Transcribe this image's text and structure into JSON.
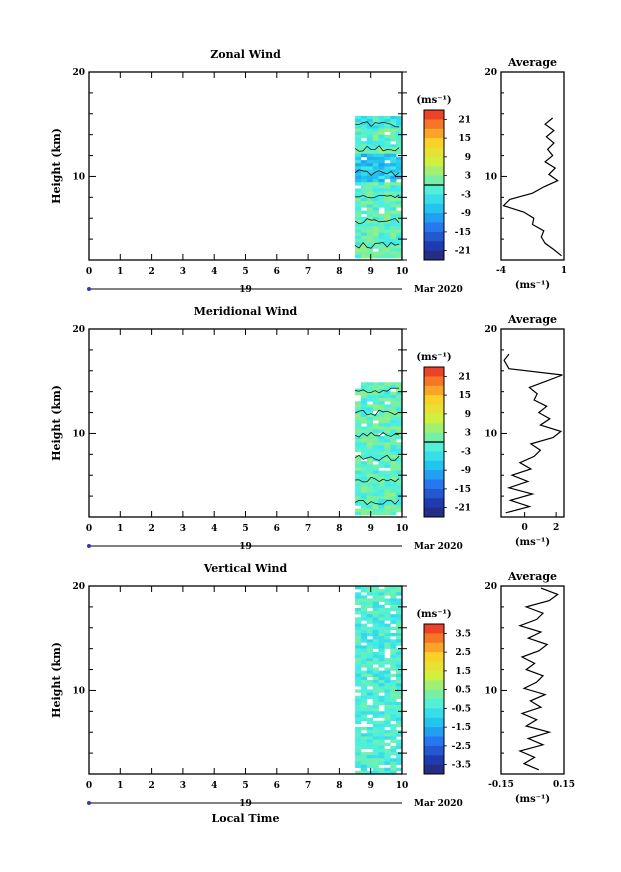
{
  "chart_data": [
    {
      "type": "heatmap",
      "panel": "zonal",
      "title": "Zonal Wind",
      "ylabel": "Height (km)",
      "ylim": [
        2,
        20
      ],
      "xlim": [
        0,
        10
      ],
      "y_ticks": [
        "10",
        "20"
      ],
      "x_ticks": [
        "0",
        "1",
        "2",
        "3",
        "4",
        "5",
        "6",
        "7",
        "8",
        "9",
        "10"
      ],
      "date_day": "19",
      "date_month": "Mar 2020",
      "data_time_range": [
        8.5,
        10
      ],
      "data_height_range": [
        2.2,
        15.8
      ],
      "colorbar": {
        "unit": "(ms⁻¹)",
        "levels": [
          "21",
          "15",
          "9",
          "3",
          "-3",
          "-9",
          "-15",
          "-21"
        ],
        "vmin": -24,
        "vmax": 24
      },
      "average_profile": {
        "title": "Average",
        "xlabel": "(ms⁻¹)",
        "x_ticks": [
          "-4",
          "1"
        ],
        "xlim": [
          -4,
          1
        ],
        "y_ticks": [
          "10",
          "20"
        ],
        "heights": [
          2.4,
          3,
          3.6,
          4.2,
          4.8,
          5.4,
          6,
          6.6,
          7.2,
          7.8,
          8.4,
          9,
          9.6,
          10.2,
          10.8,
          11.4,
          12,
          12.6,
          13.2,
          13.8,
          14.4,
          15,
          15.6
        ],
        "values": [
          0.8,
          0.2,
          -0.5,
          -0.8,
          -0.6,
          -1.5,
          -1.4,
          -2.2,
          -3.8,
          -3.3,
          -1.5,
          -0.6,
          0.5,
          -0.2,
          0.3,
          -0.5,
          0.1,
          -0.3,
          0.2,
          -0.4,
          0.2,
          -0.5,
          0.1
        ]
      }
    },
    {
      "type": "heatmap",
      "panel": "meridional",
      "title": "Meridional Wind",
      "ylabel": "Height (km)",
      "ylim": [
        2,
        20
      ],
      "xlim": [
        0,
        10
      ],
      "y_ticks": [
        "10",
        "20"
      ],
      "x_ticks": [
        "0",
        "1",
        "2",
        "3",
        "4",
        "5",
        "6",
        "7",
        "8",
        "9",
        "10"
      ],
      "date_day": "19",
      "date_month": "Mar 2020",
      "data_time_range": [
        8.5,
        10
      ],
      "data_height_range": [
        2.2,
        14.9
      ],
      "colorbar": {
        "unit": "(ms⁻¹)",
        "levels": [
          "21",
          "15",
          "9",
          "3",
          "-3",
          "-9",
          "-15",
          "-21"
        ],
        "vmin": -24,
        "vmax": 24
      },
      "average_profile": {
        "title": "Average",
        "xlabel": "(ms⁻¹)",
        "x_ticks": [
          "0",
          "2"
        ],
        "xlim": [
          -1.5,
          2.5
        ],
        "y_ticks": [
          "10",
          "20"
        ],
        "heights": [
          2.4,
          3,
          3.6,
          4.2,
          4.8,
          5.4,
          6,
          6.6,
          7.2,
          7.8,
          8.4,
          9,
          9.6,
          10.2,
          10.8,
          11.4,
          12,
          12.6,
          13.2,
          13.8,
          14.4,
          15.6,
          16.2,
          17,
          17.6
        ],
        "values": [
          -1.2,
          0.3,
          -0.9,
          0.5,
          -1.0,
          0.2,
          -0.8,
          0.4,
          -0.3,
          0.6,
          1.0,
          0.4,
          1.8,
          2.3,
          1.0,
          1.6,
          0.9,
          1.4,
          0.6,
          0.8,
          0.3,
          2.4,
          -1.0,
          -1.3,
          -1.0
        ]
      }
    },
    {
      "type": "heatmap",
      "panel": "vertical",
      "title": "Vertical Wind",
      "ylabel": "Height (km)",
      "xlabel": "Local Time",
      "ylim": [
        2,
        20
      ],
      "xlim": [
        0,
        10
      ],
      "y_ticks": [
        "10",
        "20"
      ],
      "x_ticks": [
        "0",
        "1",
        "2",
        "3",
        "4",
        "5",
        "6",
        "7",
        "8",
        "9",
        "10"
      ],
      "date_day": "19",
      "date_month": "Mar 2020",
      "data_time_range": [
        8.5,
        10
      ],
      "data_height_range": [
        2.0,
        20
      ],
      "colorbar": {
        "unit": "(ms⁻¹)",
        "levels": [
          "3.5",
          "2.5",
          "1.5",
          "0.5",
          "-0.5",
          "-1.5",
          "-2.5",
          "-3.5"
        ],
        "vmin": -4,
        "vmax": 4
      },
      "average_profile": {
        "title": "Average",
        "xlabel": "(ms⁻¹)",
        "x_ticks": [
          "-0.15",
          "0.15"
        ],
        "xlim": [
          -0.15,
          0.15
        ],
        "y_ticks": [
          "10",
          "20"
        ],
        "heights": [
          2.4,
          3,
          3.6,
          4.2,
          4.8,
          5.4,
          6,
          6.6,
          7.2,
          7.8,
          8.4,
          9,
          9.6,
          10.2,
          10.8,
          11.4,
          12,
          12.6,
          13.2,
          13.8,
          14.4,
          15,
          15.6,
          16.2,
          16.8,
          17.4,
          18,
          18.6,
          19.2,
          19.8
        ],
        "values": [
          0.03,
          -0.04,
          0.01,
          -0.06,
          0.05,
          -0.02,
          0.08,
          -0.03,
          0.02,
          -0.05,
          0.04,
          -0.01,
          0.06,
          -0.04,
          0.02,
          0.05,
          -0.03,
          0.01,
          -0.05,
          0.03,
          0.07,
          -0.02,
          0.04,
          -0.06,
          0.02,
          0.05,
          -0.03,
          0.08,
          0.12,
          0.04
        ]
      }
    }
  ]
}
